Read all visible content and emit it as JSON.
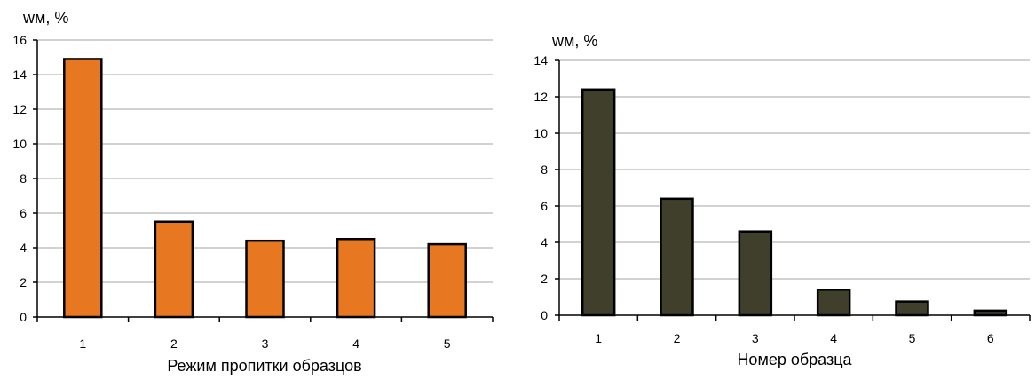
{
  "chart_data": [
    {
      "type": "bar",
      "categories": [
        "1",
        "2",
        "3",
        "4",
        "5"
      ],
      "values": [
        14.9,
        5.5,
        4.4,
        4.5,
        4.2
      ],
      "xlabel": "Режим пропитки образцов",
      "ylabel": "wм, %",
      "ylim": [
        0,
        16
      ],
      "yticks": [
        "0",
        "2",
        "4",
        "6",
        "8",
        "10",
        "12",
        "14",
        "16"
      ],
      "bar_color": "#E87722",
      "grid": true
    },
    {
      "type": "bar",
      "categories": [
        "1",
        "2",
        "3",
        "4",
        "5",
        "6"
      ],
      "values": [
        12.4,
        6.4,
        4.6,
        1.4,
        0.75,
        0.25
      ],
      "xlabel": "Номер образца",
      "ylabel": "wм, %",
      "ylim": [
        0,
        14
      ],
      "yticks": [
        "0",
        "2",
        "4",
        "6",
        "8",
        "10",
        "12",
        "14"
      ],
      "bar_color": "#3F3F2B",
      "grid": true
    }
  ]
}
